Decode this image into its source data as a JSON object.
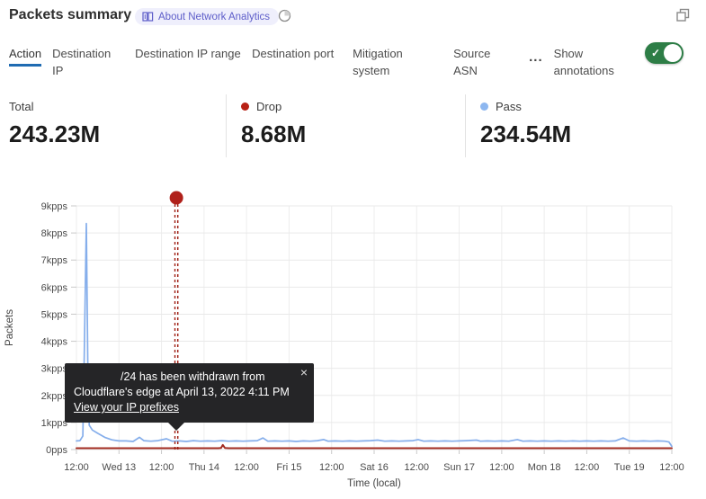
{
  "header": {
    "title": "Packets summary",
    "badge_label": "About Network Analytics",
    "icons": {
      "badge_icon": "book-icon",
      "time_icon": "time-range-icon",
      "window_icon": "overlap-squares-icon"
    }
  },
  "tabs": {
    "items": [
      {
        "label": "Action",
        "active": true
      },
      {
        "label": "Destination IP",
        "active": false
      },
      {
        "label": "Destination IP range",
        "active": false
      },
      {
        "label": "Destination port",
        "active": false
      },
      {
        "label": "Mitigation system",
        "active": false
      },
      {
        "label": "Source ASN",
        "active": false
      }
    ],
    "more_label": "...",
    "show_annotations_label": "Show annotations",
    "toggle": {
      "state": "on",
      "check_glyph": "✓",
      "color": "#2d7d46"
    }
  },
  "stats": [
    {
      "label": "Total",
      "value": "243.23M",
      "dot_color": null
    },
    {
      "label": "Drop",
      "value": "8.68M",
      "dot_color": "#b82115"
    },
    {
      "label": "Pass",
      "value": "234.54M",
      "dot_color": "#8db7f0"
    }
  ],
  "tooltip": {
    "line1": "/24 has been withdrawn from",
    "line2": "Cloudflare's edge at April 13, 2022 4:11 PM",
    "link_label": "View your IP prefixes",
    "close_glyph": "×"
  },
  "chart_data": {
    "type": "line",
    "title": "",
    "xlabel": "Time (local)",
    "ylabel": "Packets",
    "y_unit": "kpps",
    "ylim": [
      0,
      9
    ],
    "grid": true,
    "y_tick_labels": [
      "0pps",
      "1kpps",
      "2kpps",
      "3kpps",
      "4kpps",
      "5kpps",
      "6kpps",
      "7kpps",
      "8kpps",
      "9kpps"
    ],
    "x_tick_labels": [
      "12:00",
      "Wed 13",
      "12:00",
      "Thu 14",
      "12:00",
      "Fri 15",
      "12:00",
      "Sat 16",
      "12:00",
      "Sun 17",
      "12:00",
      "Mon 18",
      "12:00",
      "Tue 19",
      "12:00"
    ],
    "x_hours_range": [
      0,
      168
    ],
    "series": [
      {
        "name": "Pass",
        "color": "#85aeeb",
        "width": 1.7,
        "points": [
          [
            0,
            0.32
          ],
          [
            1,
            0.33
          ],
          [
            1.8,
            0.5
          ],
          [
            2.2,
            3.5
          ],
          [
            2.8,
            8.35
          ],
          [
            3.2,
            3.2
          ],
          [
            3.6,
            0.9
          ],
          [
            4.5,
            0.72
          ],
          [
            6,
            0.6
          ],
          [
            8,
            0.45
          ],
          [
            10,
            0.36
          ],
          [
            12,
            0.32
          ],
          [
            14,
            0.32
          ],
          [
            16,
            0.3
          ],
          [
            17.8,
            0.45
          ],
          [
            19,
            0.33
          ],
          [
            21,
            0.31
          ],
          [
            23,
            0.33
          ],
          [
            25.4,
            0.4
          ],
          [
            27,
            0.31
          ],
          [
            29,
            0.32
          ],
          [
            31,
            0.3
          ],
          [
            33,
            0.33
          ],
          [
            35,
            0.31
          ],
          [
            37,
            0.32
          ],
          [
            39,
            0.31
          ],
          [
            41,
            0.33
          ],
          [
            43,
            0.31
          ],
          [
            45,
            0.32
          ],
          [
            47,
            0.31
          ],
          [
            49,
            0.32
          ],
          [
            51,
            0.33
          ],
          [
            52.6,
            0.43
          ],
          [
            54,
            0.31
          ],
          [
            56,
            0.32
          ],
          [
            58,
            0.31
          ],
          [
            60,
            0.32
          ],
          [
            62,
            0.3
          ],
          [
            64,
            0.32
          ],
          [
            66,
            0.31
          ],
          [
            68,
            0.33
          ],
          [
            69.8,
            0.37
          ],
          [
            71,
            0.31
          ],
          [
            73,
            0.32
          ],
          [
            75,
            0.31
          ],
          [
            77,
            0.32
          ],
          [
            79,
            0.31
          ],
          [
            81,
            0.32
          ],
          [
            83,
            0.33
          ],
          [
            85,
            0.35
          ],
          [
            87,
            0.31
          ],
          [
            89,
            0.32
          ],
          [
            91,
            0.31
          ],
          [
            93,
            0.32
          ],
          [
            95,
            0.33
          ],
          [
            96.4,
            0.37
          ],
          [
            98,
            0.31
          ],
          [
            100,
            0.32
          ],
          [
            102,
            0.31
          ],
          [
            104,
            0.32
          ],
          [
            106,
            0.31
          ],
          [
            108,
            0.32
          ],
          [
            110,
            0.33
          ],
          [
            112.9,
            0.35
          ],
          [
            114,
            0.31
          ],
          [
            116,
            0.32
          ],
          [
            118,
            0.31
          ],
          [
            120,
            0.32
          ],
          [
            122,
            0.31
          ],
          [
            124.4,
            0.37
          ],
          [
            126,
            0.31
          ],
          [
            128,
            0.32
          ],
          [
            130,
            0.31
          ],
          [
            132,
            0.32
          ],
          [
            134,
            0.31
          ],
          [
            136,
            0.32
          ],
          [
            138,
            0.31
          ],
          [
            140,
            0.32
          ],
          [
            142,
            0.31
          ],
          [
            144,
            0.32
          ],
          [
            146,
            0.31
          ],
          [
            148,
            0.32
          ],
          [
            150,
            0.31
          ],
          [
            152,
            0.32
          ],
          [
            154.3,
            0.43
          ],
          [
            156,
            0.32
          ],
          [
            158,
            0.31
          ],
          [
            160,
            0.32
          ],
          [
            162,
            0.31
          ],
          [
            164,
            0.32
          ],
          [
            166,
            0.31
          ],
          [
            167.2,
            0.28
          ],
          [
            168,
            0.12
          ]
        ]
      },
      {
        "name": "Drop",
        "color": "#a32d22",
        "width": 2,
        "points": [
          [
            0,
            0.05
          ],
          [
            10,
            0.05
          ],
          [
            20,
            0.05
          ],
          [
            30,
            0.05
          ],
          [
            40,
            0.05
          ],
          [
            40.8,
            0.06
          ],
          [
            41.3,
            0.17
          ],
          [
            41.9,
            0.06
          ],
          [
            43,
            0.05
          ],
          [
            50,
            0.05
          ],
          [
            60,
            0.05
          ],
          [
            70,
            0.05
          ],
          [
            80,
            0.05
          ],
          [
            90,
            0.05
          ],
          [
            100,
            0.05
          ],
          [
            110,
            0.05
          ],
          [
            120,
            0.05
          ],
          [
            130,
            0.05
          ],
          [
            140,
            0.05
          ],
          [
            150,
            0.05
          ],
          [
            160,
            0.05
          ],
          [
            168,
            0.05
          ]
        ]
      }
    ],
    "annotation": {
      "x_hour": 28.2,
      "label_date": "April 13, 2022 4:11 PM",
      "style": "double-dashed-vertical-line",
      "marker": "red-dot",
      "color": "#9e1d12"
    }
  },
  "colors": {
    "active_tab_underline": "#1f6bb2",
    "toggle_green": "#2d7d46",
    "pass_blue": "#85aeeb",
    "drop_red": "#a32d22",
    "badge_bg": "#efeffc",
    "badge_text": "#5d5dc9",
    "tooltip_bg": "#252527"
  }
}
